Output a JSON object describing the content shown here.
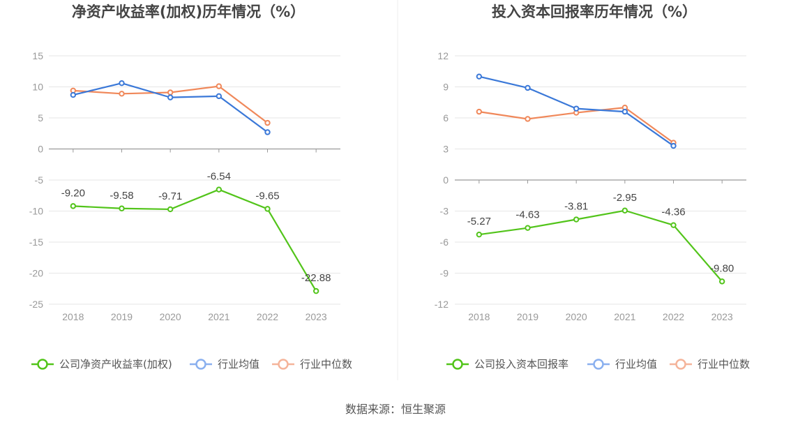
{
  "source": "数据来源：恒生聚源",
  "colors": {
    "company": "#52c41a",
    "industry_avg": "#3a78d8",
    "industry_median": "#f0885a",
    "grid": "#e6e6e6",
    "axis": "#999999",
    "legend_avg": "#8ab0ef",
    "legend_median": "#f5b49a"
  },
  "chart_data": [
    {
      "type": "line",
      "title": "净资产收益率(加权)历年情况（%）",
      "categories": [
        "2018",
        "2019",
        "2020",
        "2021",
        "2022",
        "2023"
      ],
      "ylim": [
        -25,
        15
      ],
      "yticks": [
        15,
        10,
        5,
        0,
        -5,
        -10,
        -15,
        -20,
        -25
      ],
      "grid": true,
      "legend_position": "bottom",
      "series": [
        {
          "name": "公司净资产收益率(加权)",
          "color_key": "company",
          "values": [
            -9.2,
            -9.58,
            -9.71,
            -6.54,
            -9.65,
            -22.88
          ],
          "labels": [
            "-9.20",
            "-9.58",
            "-9.71",
            "-6.54",
            "-9.65",
            "-22.88"
          ]
        },
        {
          "name": "行业均值",
          "color_key": "industry_avg",
          "values": [
            8.7,
            10.6,
            8.3,
            8.5,
            2.7,
            null
          ]
        },
        {
          "name": "行业中位数",
          "color_key": "industry_median",
          "values": [
            9.4,
            8.9,
            9.1,
            10.1,
            4.2,
            null
          ]
        }
      ]
    },
    {
      "type": "line",
      "title": "投入资本回报率历年情况（%）",
      "categories": [
        "2018",
        "2019",
        "2020",
        "2021",
        "2022",
        "2023"
      ],
      "ylim": [
        -12,
        12
      ],
      "yticks": [
        12,
        9,
        6,
        3,
        0,
        -3,
        -6,
        -9,
        -12
      ],
      "grid": true,
      "legend_position": "bottom",
      "series": [
        {
          "name": "公司投入资本回报率",
          "color_key": "company",
          "values": [
            -5.27,
            -4.63,
            -3.81,
            -2.95,
            -4.36,
            -9.8
          ],
          "labels": [
            "-5.27",
            "-4.63",
            "-3.81",
            "-2.95",
            "-4.36",
            "-9.80"
          ]
        },
        {
          "name": "行业均值",
          "color_key": "industry_avg",
          "values": [
            10.0,
            8.9,
            6.9,
            6.6,
            3.3,
            null
          ]
        },
        {
          "name": "行业中位数",
          "color_key": "industry_median",
          "values": [
            6.6,
            5.9,
            6.5,
            7.0,
            3.6,
            null
          ]
        }
      ]
    }
  ]
}
